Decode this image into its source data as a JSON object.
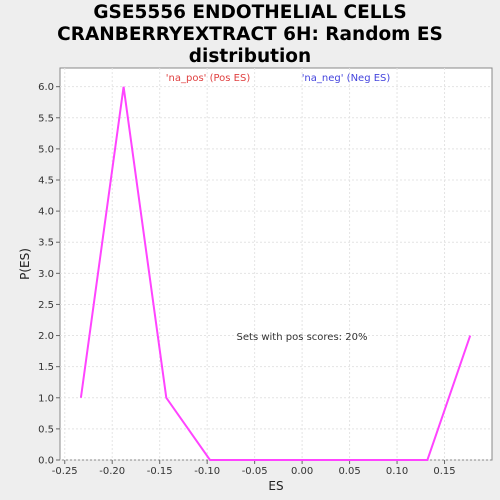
{
  "chart_data": {
    "type": "line",
    "title_lines": [
      "GSE5556 ENDOTHELIAL CELLS",
      "CRANBERRYEXTRACT 6H: Random ES",
      "distribution"
    ],
    "xlabel": "ES",
    "ylabel": "P(ES)",
    "xlim": [
      -0.255,
      0.2
    ],
    "ylim": [
      0,
      6.3
    ],
    "x_ticks": [
      -0.25,
      -0.2,
      -0.15,
      -0.1,
      -0.05,
      0.0,
      0.05,
      0.1,
      0.15
    ],
    "x_tick_labels": [
      "-0.25",
      "-0.20",
      "-0.15",
      "-0.10",
      "-0.05",
      "0.00",
      "0.05",
      "0.10",
      "0.15"
    ],
    "y_ticks": [
      0.0,
      0.5,
      1.0,
      1.5,
      2.0,
      2.5,
      3.0,
      3.5,
      4.0,
      4.5,
      5.0,
      5.5,
      6.0
    ],
    "y_tick_labels": [
      "0.0",
      "0.5",
      "1.0",
      "1.5",
      "2.0",
      "2.5",
      "3.0",
      "3.5",
      "4.0",
      "4.5",
      "5.0",
      "5.5",
      "6.0"
    ],
    "grid": true,
    "series": [
      {
        "name": "",
        "color": "#ff44ff",
        "x": [
          -0.233,
          -0.188,
          -0.143,
          -0.097,
          0.132,
          0.177
        ],
        "y": [
          1.0,
          6.0,
          1.0,
          0.0,
          0.0,
          2.0
        ]
      }
    ],
    "legend": [
      {
        "label": "'na_pos' (Pos ES)",
        "color": "#e04040"
      },
      {
        "label": "'na_neg' (Neg ES)",
        "color": "#4444dd"
      }
    ],
    "legend_placement": "top-center",
    "annotation": "Sets with pos scores: 20%"
  }
}
